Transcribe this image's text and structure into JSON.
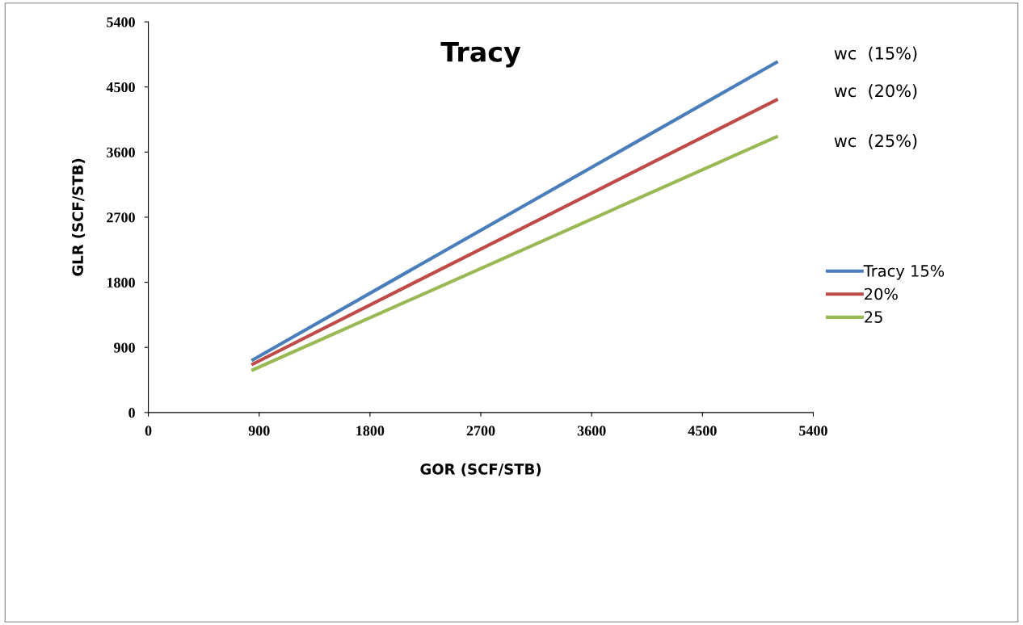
{
  "chart_data": {
    "type": "line",
    "title": "Tracy",
    "xlabel": "GOR (SCF/STB)",
    "ylabel": "GLR (SCF/STB)",
    "xlim": [
      0,
      5400
    ],
    "ylim": [
      0,
      5400
    ],
    "xticks": [
      0,
      900,
      1800,
      2700,
      3600,
      4500,
      5400
    ],
    "yticks": [
      0,
      900,
      1800,
      2700,
      3600,
      4500,
      5400
    ],
    "x": [
      850,
      5100
    ],
    "series": [
      {
        "name": "Tracy 15%",
        "color": "#4a7ebb",
        "values": [
          730,
          4840
        ]
      },
      {
        "name": "20%",
        "color": "#be4b48",
        "values": [
          670,
          4320
        ]
      },
      {
        "name": "25",
        "color": "#98b954",
        "values": [
          590,
          3810
        ]
      }
    ],
    "annotations": [
      "wc  (15%)",
      "wc  (20%)",
      "wc  (25%)"
    ],
    "legend": "right",
    "grid": false
  }
}
